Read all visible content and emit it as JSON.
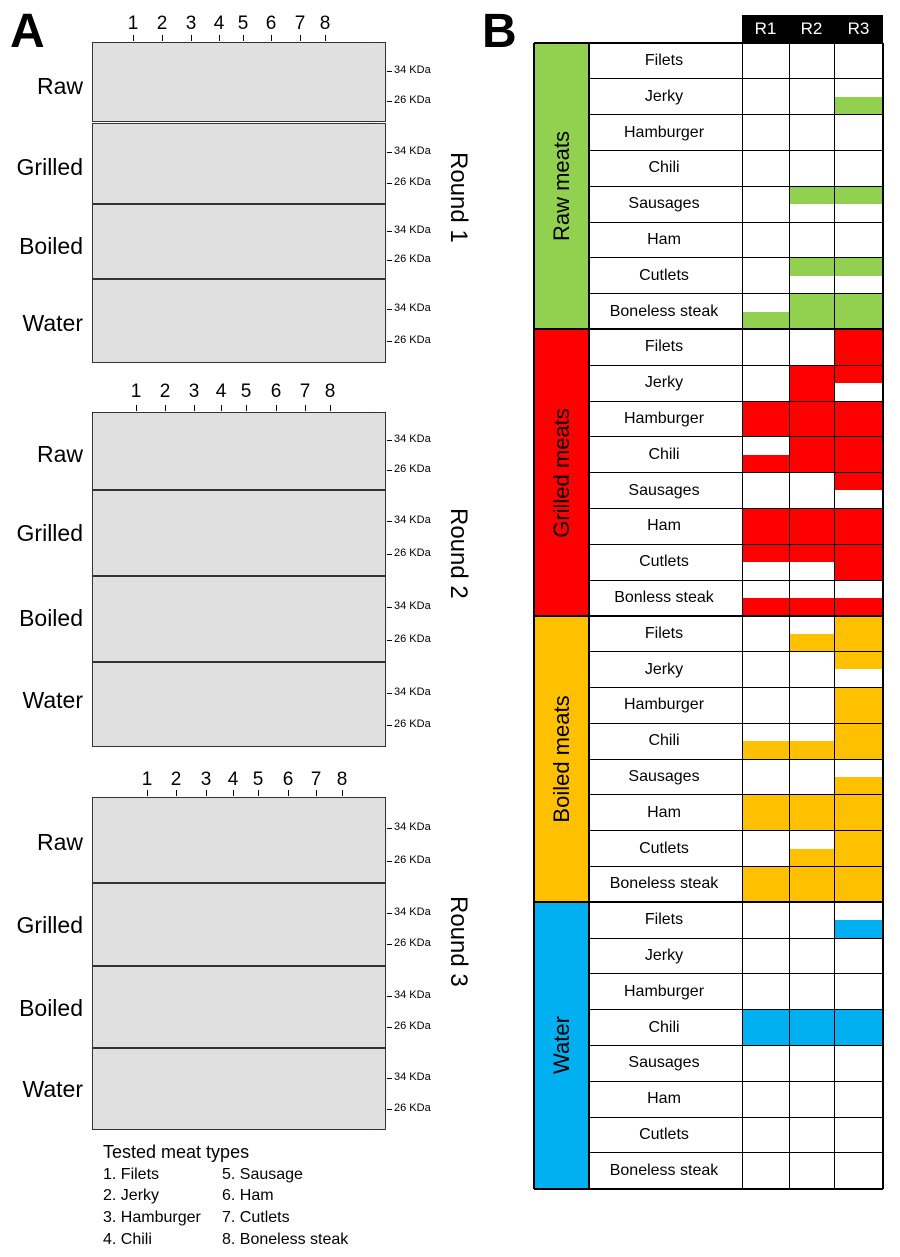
{
  "panel_a_letter": "A",
  "panel_b_letter": "B",
  "lane_numbers": [
    "1",
    "2",
    "3",
    "4",
    "5",
    "6",
    "7",
    "8"
  ],
  "conditions": [
    "Raw",
    "Grilled",
    "Boiled",
    "Water"
  ],
  "kda_labels": [
    "34 KDa",
    "26 KDa"
  ],
  "rounds": [
    "Round 1",
    "Round 2",
    "Round 3"
  ],
  "legend": {
    "title": "Tested meat types",
    "col1": [
      "1. Filets",
      "2. Jerky",
      "3. Hamburger",
      "4. Chili"
    ],
    "col2": [
      "5. Sausage",
      "6. Ham",
      "7. Cutlets",
      "8. Boneless steak"
    ]
  },
  "table": {
    "columns": [
      "R1",
      "R2",
      "R3"
    ],
    "categories": [
      {
        "name": "Raw meats",
        "color": "#92d050",
        "meats": [
          "Filets",
          "Jerky",
          "Hamburger",
          "Chili",
          "Sausages",
          "Ham",
          "Cutlets",
          "Boneless steak"
        ]
      },
      {
        "name": "Grilled meats",
        "color": "#ff0000",
        "meats": [
          "Filets",
          "Jerky",
          "Hamburger",
          "Chili",
          "Sausages",
          "Ham",
          "Cutlets",
          "Bonless steak"
        ]
      },
      {
        "name": "Boiled meats",
        "color": "#ffc000",
        "meats": [
          "Filets",
          "Jerky",
          "Hamburger",
          "Chili",
          "Sausages",
          "Ham",
          "Cutlets",
          "Boneless steak"
        ]
      },
      {
        "name": "Water",
        "color": "#00b0f0",
        "meats": [
          "Filets",
          "Jerky",
          "Hamburger",
          "Chili",
          "Sausages",
          "Ham",
          "Cutlets",
          "Boneless steak"
        ]
      }
    ]
  }
}
